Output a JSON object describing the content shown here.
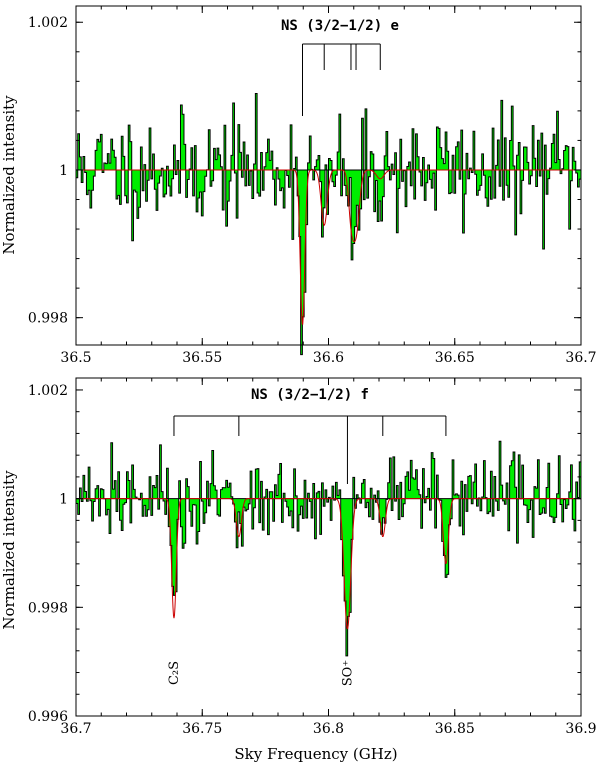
{
  "figure": {
    "xlabel": "Sky Frequency (GHz)",
    "ylabel": "Normalized intensity"
  },
  "colors": {
    "fill": "#00ee00",
    "stroke": "#000000",
    "model": "#cc0000"
  },
  "chart_data": [
    {
      "type": "area",
      "title": "NS (3/2−1/2) e",
      "xlabel": "Sky Frequency (GHz)",
      "ylabel": "Normalized intensity",
      "xlim": [
        36.5,
        36.7
      ],
      "ylim": [
        0.99763,
        1.00222
      ],
      "xticks": [
        36.5,
        36.55,
        36.6,
        36.65,
        36.7
      ],
      "xtick_labels": [
        "36.5",
        "36.55",
        "36.6",
        "36.65",
        "36.7"
      ],
      "yticks": [
        0.998,
        1,
        1.002
      ],
      "ytick_labels": [
        "0.998",
        "1",
        "1.002"
      ],
      "baseline": 1,
      "absorption_lines": [
        {
          "x": 36.5897,
          "depth": 0.0021,
          "width": 0.0009
        },
        {
          "x": 36.5983,
          "depth": 0.00075,
          "width": 0.0012
        },
        {
          "x": 36.6089,
          "depth": 0.00055,
          "width": 0.001
        },
        {
          "x": 36.6109,
          "depth": 0.00085,
          "width": 0.0013
        },
        {
          "x": 36.6205,
          "depth": 0.00012,
          "width": 0.0015
        }
      ],
      "hfs_markers": {
        "x": [
          36.5897,
          36.5983,
          36.6089,
          36.6109,
          36.6205
        ],
        "main_index": 0
      },
      "noise_sigma": 0.00038,
      "seed": 11
    },
    {
      "type": "area",
      "title": "NS (3/2−1/2) f",
      "xlabel": "Sky Frequency (GHz)",
      "ylabel": "Normalized intensity",
      "xlim": [
        36.7,
        36.9
      ],
      "ylim": [
        0.996,
        1.00222
      ],
      "xticks": [
        36.7,
        36.75,
        36.8,
        36.85,
        36.9
      ],
      "xtick_labels": [
        "36.7",
        "36.75",
        "36.8",
        "36.85",
        "36.9"
      ],
      "yticks": [
        0.996,
        0.998,
        1,
        1.002
      ],
      "ytick_labels": [
        "0.996",
        "0.998",
        "1",
        "1.002"
      ],
      "baseline": 1,
      "absorption_lines": [
        {
          "x": 36.7388,
          "depth": 0.0022,
          "width": 0.0009
        },
        {
          "x": 36.7645,
          "depth": 0.0007,
          "width": 0.001
        },
        {
          "x": 36.8075,
          "depth": 0.0024,
          "width": 0.0013
        },
        {
          "x": 36.8215,
          "depth": 0.0007,
          "width": 0.001
        },
        {
          "x": 36.8465,
          "depth": 0.0012,
          "width": 0.001
        }
      ],
      "hfs_markers": {
        "x": [
          36.7388,
          36.7645,
          36.8075,
          36.8215,
          36.8465
        ],
        "main_index": 2
      },
      "annotations": [
        {
          "text": "C₂S",
          "x": 36.7388
        },
        {
          "text": "SO⁺",
          "x": 36.8075
        }
      ],
      "noise_sigma": 0.00038,
      "seed": 27
    }
  ]
}
